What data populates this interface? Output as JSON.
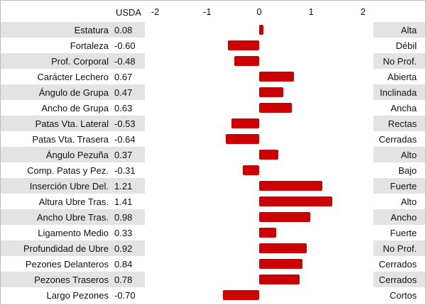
{
  "header": {
    "value_col": "USDA"
  },
  "chart_data": {
    "type": "bar",
    "orientation": "horizontal",
    "xlim": [
      -2.2,
      2.2
    ],
    "ticks": [
      -2,
      -1,
      0,
      1,
      2
    ],
    "bar_color": "#cc0000",
    "categories": [
      "Estatura",
      "Fortaleza",
      "Prof. Corporal",
      "Carácter Lechero",
      "Ángulo de Grupa",
      "Ancho de Grupa",
      "Patas Vta. Lateral",
      "Patas Vta. Trasera",
      "Ángulo Pezuña",
      "Comp. Patas y Pez.",
      "Inserción Ubre Del.",
      "Altura Ubre Tras.",
      "Ancho Ubre Tras.",
      "Ligamento Medio",
      "Profundidad de Ubre",
      "Pezones Delanteros",
      "Pezones Traseros",
      "Largo Pezones"
    ],
    "values": [
      0.08,
      -0.6,
      -0.48,
      0.67,
      0.47,
      0.63,
      -0.53,
      -0.64,
      0.37,
      -0.31,
      1.21,
      1.41,
      0.98,
      0.33,
      0.92,
      0.84,
      0.78,
      -0.7
    ],
    "value_labels": [
      "0.08",
      "-0.60",
      "-0.48",
      "0.67",
      "0.47",
      "0.63",
      "-0.53",
      "-0.64",
      "0.37",
      "-0.31",
      "1.21",
      "1.41",
      "0.98",
      "0.33",
      "0.92",
      "0.84",
      "0.78",
      "-0.70"
    ],
    "descriptors": [
      "Alta",
      "Débil",
      "No Prof.",
      "Abierta",
      "Inclinada",
      "Ancha",
      "Rectas",
      "Cerradas",
      "Alto",
      "Bajo",
      "Fuerte",
      "Alto",
      "Ancho",
      "Fuerte",
      "No Prof.",
      "Cerrados",
      "Cerrados",
      "Cortos"
    ]
  }
}
